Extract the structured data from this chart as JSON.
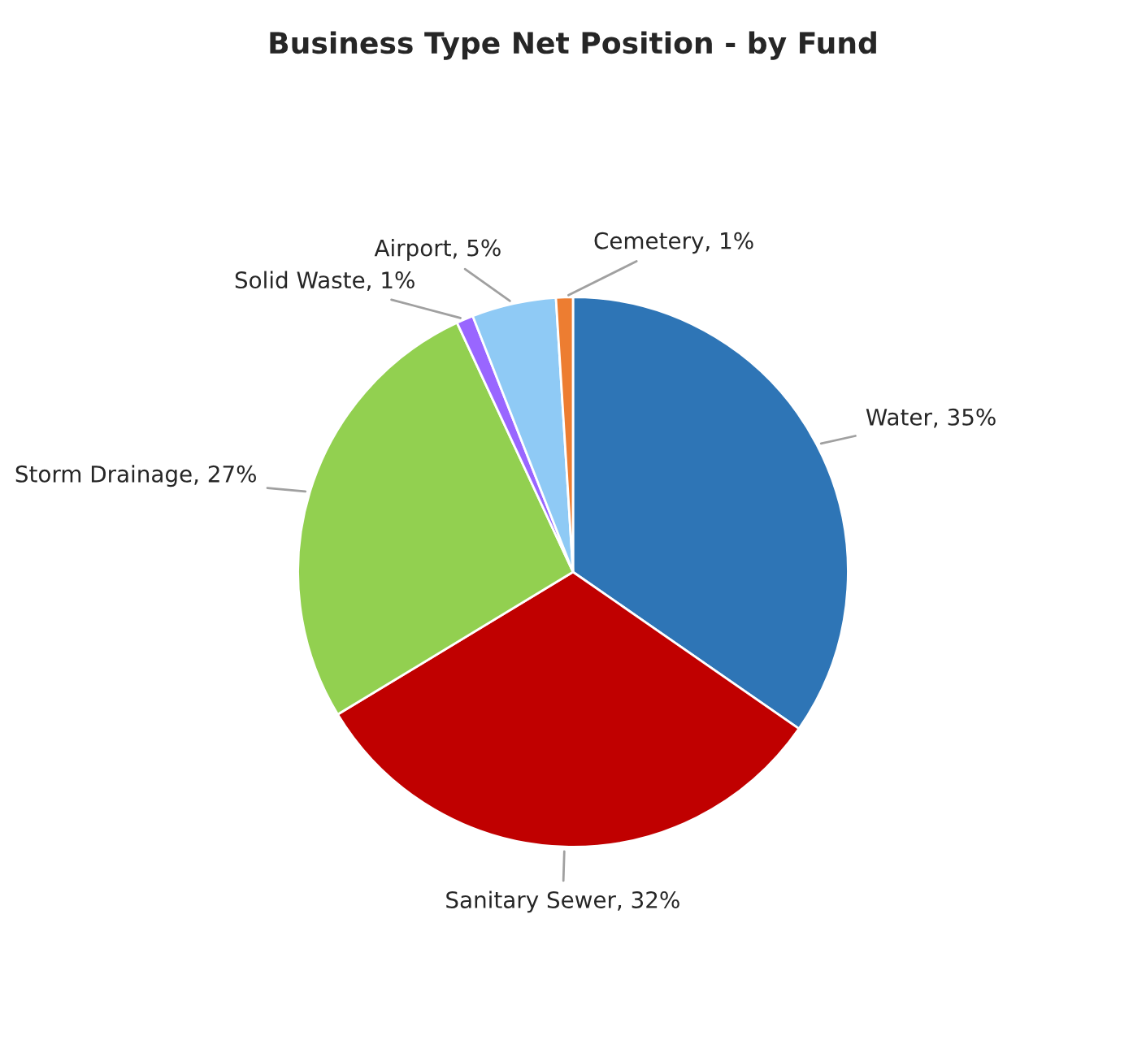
{
  "chart_data": {
    "type": "pie",
    "title": "Business Type Net Position - by Fund",
    "categories": [
      "Water",
      "Sanitary Sewer",
      "Storm Drainage",
      "Solid Waste",
      "Airport",
      "Cemetery"
    ],
    "values": [
      35,
      32,
      27,
      1,
      5,
      1
    ],
    "value_labels": [
      "35%",
      "32%",
      "27%",
      "1%",
      "5%",
      "1%"
    ],
    "colors": [
      "#2e75b6",
      "#c00000",
      "#92d050",
      "#9966ff",
      "#8fcaf5",
      "#ed7d31"
    ],
    "legend": false
  }
}
